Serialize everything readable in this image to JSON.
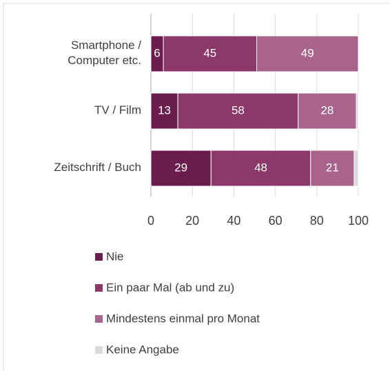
{
  "chart_data": {
    "type": "stacked_barh",
    "categories": [
      [
        "Smartphone /",
        "Computer etc."
      ],
      [
        "TV / Film"
      ],
      [
        "Zeitschrift / Buch"
      ]
    ],
    "series": [
      {
        "name": "Nie",
        "color": "#6b1e4e",
        "values": [
          6,
          13,
          29
        ],
        "show_labels": true
      },
      {
        "name": "Ein paar Mal (ab und zu)",
        "color": "#8c3868",
        "values": [
          45,
          58,
          48
        ],
        "show_labels": true
      },
      {
        "name": "Mindestens einmal pro Monat",
        "color": "#a8648c",
        "values": [
          49,
          28,
          21
        ],
        "show_labels": true
      },
      {
        "name": "Keine Angabe",
        "color": "#d9d9d9",
        "values": [
          0,
          1,
          2
        ],
        "show_labels": false
      }
    ],
    "xlim": [
      0,
      100
    ],
    "xticks": [
      0,
      20,
      40,
      60,
      80,
      100
    ],
    "grid": true,
    "legend": "bottom"
  }
}
